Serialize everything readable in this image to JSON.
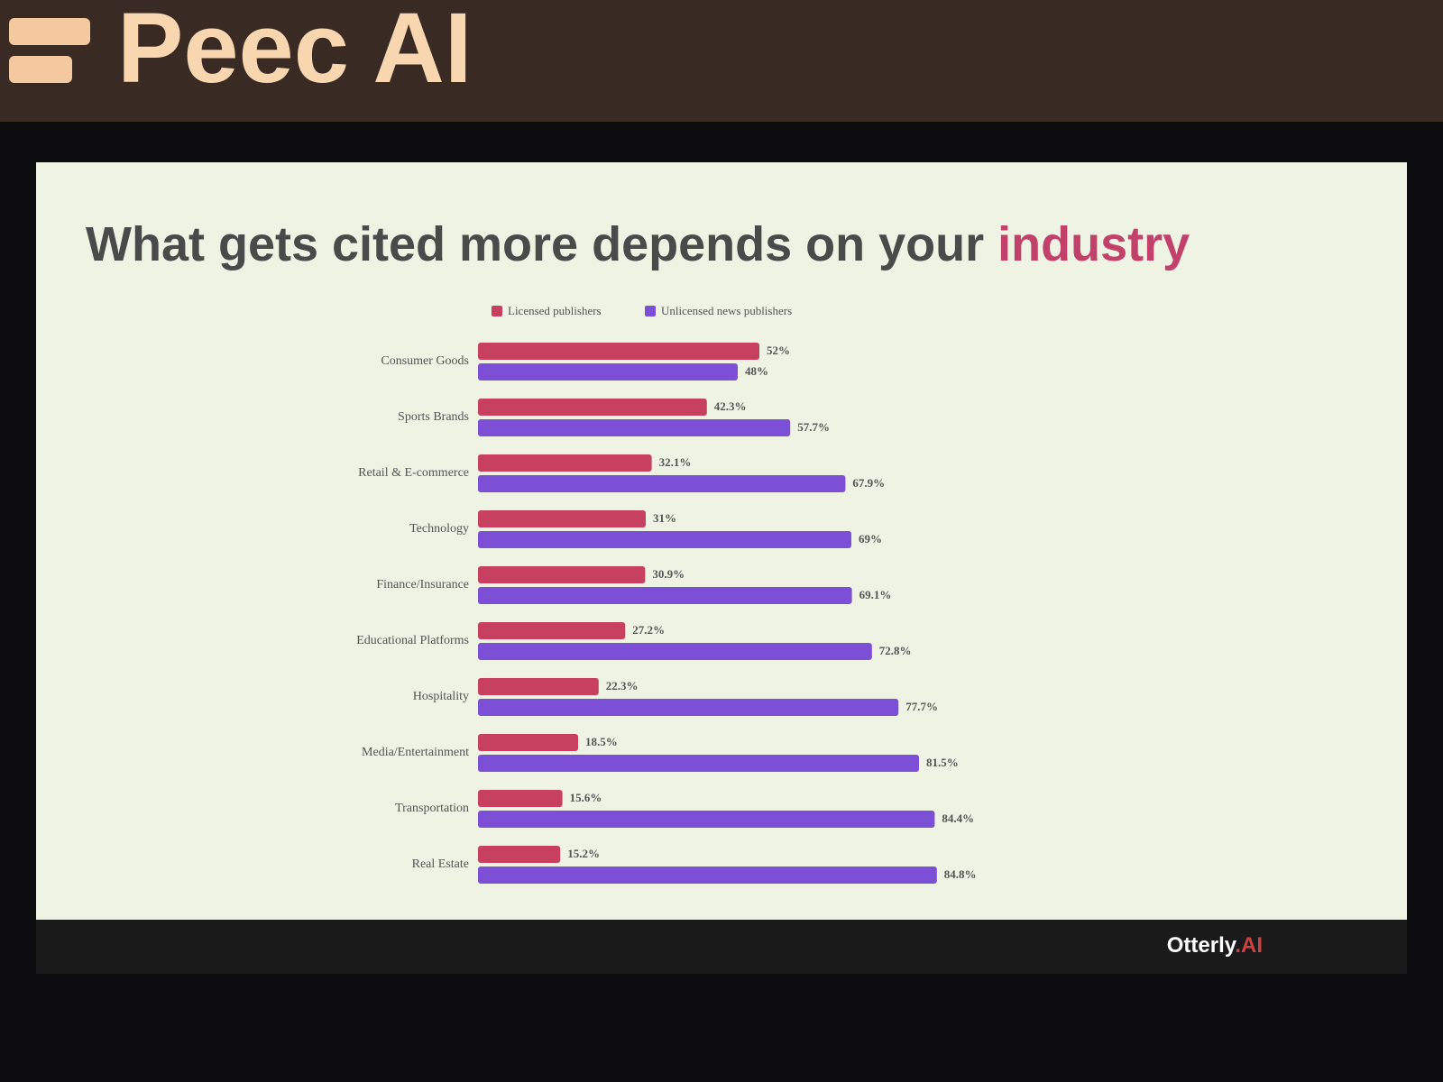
{
  "banner": "Peec AI",
  "chart_data": {
    "type": "hbar",
    "title": "What gets cited more depends on your",
    "title_highlight": "industry",
    "categories": [
      "Consumer Goods",
      "Sports Brands",
      "Retail & E-commerce",
      "Technology",
      "Finance/Insurance",
      "Educational Platforms",
      "Hospitality",
      "Media/Entertainment",
      "Transportation",
      "Real Estate"
    ],
    "series": [
      {
        "name": "Licensed publishers",
        "color": "#c8405f",
        "values": [
          52,
          42.3,
          32.1,
          31,
          30.9,
          27.2,
          22.3,
          18.5,
          15.6,
          15.2
        ],
        "value_labels": [
          "52%",
          "42.3%",
          "32.1%",
          "31%",
          "30.9%",
          "27.2%",
          "22.3%",
          "18.5%",
          "15.6%",
          "15.2%"
        ]
      },
      {
        "name": "Unlicensed news publishers",
        "color": "#7b4fd6",
        "values": [
          48,
          57.7,
          67.9,
          69,
          69.1,
          72.8,
          77.7,
          81.5,
          84.4,
          84.8
        ],
        "value_labels": [
          "48%",
          "57.7%",
          "67.9%",
          "69%",
          "69.1%",
          "72.8%",
          "77.7%",
          "81.5%",
          "84.4%",
          "84.8%"
        ]
      }
    ],
    "xlim": [
      0,
      100
    ],
    "legend": "top"
  },
  "logo": {
    "name": "Otterly",
    "suffix": ".AI"
  }
}
